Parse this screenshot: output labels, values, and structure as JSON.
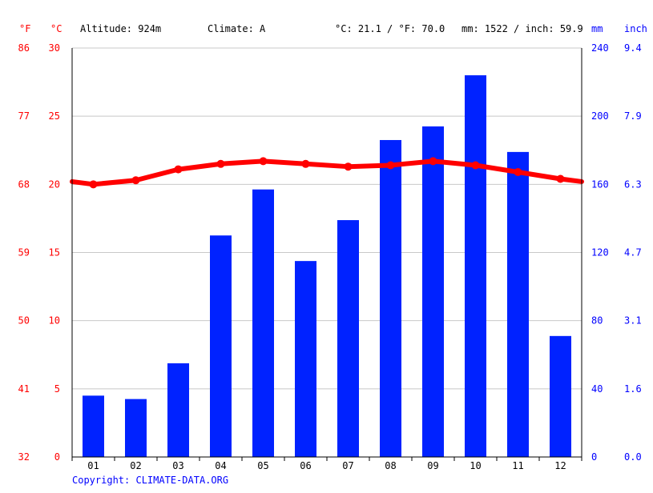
{
  "header": {
    "unit_f": "°F",
    "unit_c": "°C",
    "altitude": "Altitude: 924m",
    "climate": "Climate: A",
    "temp_summary": "°C: 21.1 / °F: 70.0",
    "precip_summary": "mm: 1522 / inch: 59.9",
    "unit_mm": "mm",
    "unit_inch": "inch"
  },
  "footer": {
    "copyright": "Copyright: CLIMATE-DATA.ORG"
  },
  "colors": {
    "temperature": "#ff0000",
    "precipitation": "#0022ff",
    "grid": "#c8c8c8"
  },
  "chart_data": {
    "type": "bar",
    "categories": [
      "01",
      "02",
      "03",
      "04",
      "05",
      "06",
      "07",
      "08",
      "09",
      "10",
      "11",
      "12"
    ],
    "series": [
      {
        "type": "bar",
        "axis": "right",
        "values": [
          36,
          34,
          55,
          130,
          157,
          115,
          139,
          186,
          194,
          224,
          179,
          71
        ]
      },
      {
        "type": "line",
        "axis": "left",
        "values": [
          20.0,
          20.3,
          21.1,
          21.5,
          21.7,
          21.5,
          21.3,
          21.4,
          21.7,
          21.4,
          20.9,
          20.4
        ]
      }
    ],
    "y_left_celsius": {
      "ticks": [
        "0",
        "5",
        "10",
        "15",
        "20",
        "25",
        "30"
      ],
      "range": [
        0,
        30
      ]
    },
    "y_left_fahrenheit": {
      "ticks": [
        "32",
        "41",
        "50",
        "59",
        "68",
        "77",
        "86"
      ]
    },
    "y_right_mm": {
      "ticks": [
        "0",
        "40",
        "80",
        "120",
        "160",
        "200",
        "240"
      ],
      "range": [
        0,
        240
      ]
    },
    "y_right_inch": {
      "ticks": [
        "0.0",
        "1.6",
        "3.1",
        "4.7",
        "6.3",
        "7.9",
        "9.4"
      ]
    },
    "grid": true
  }
}
